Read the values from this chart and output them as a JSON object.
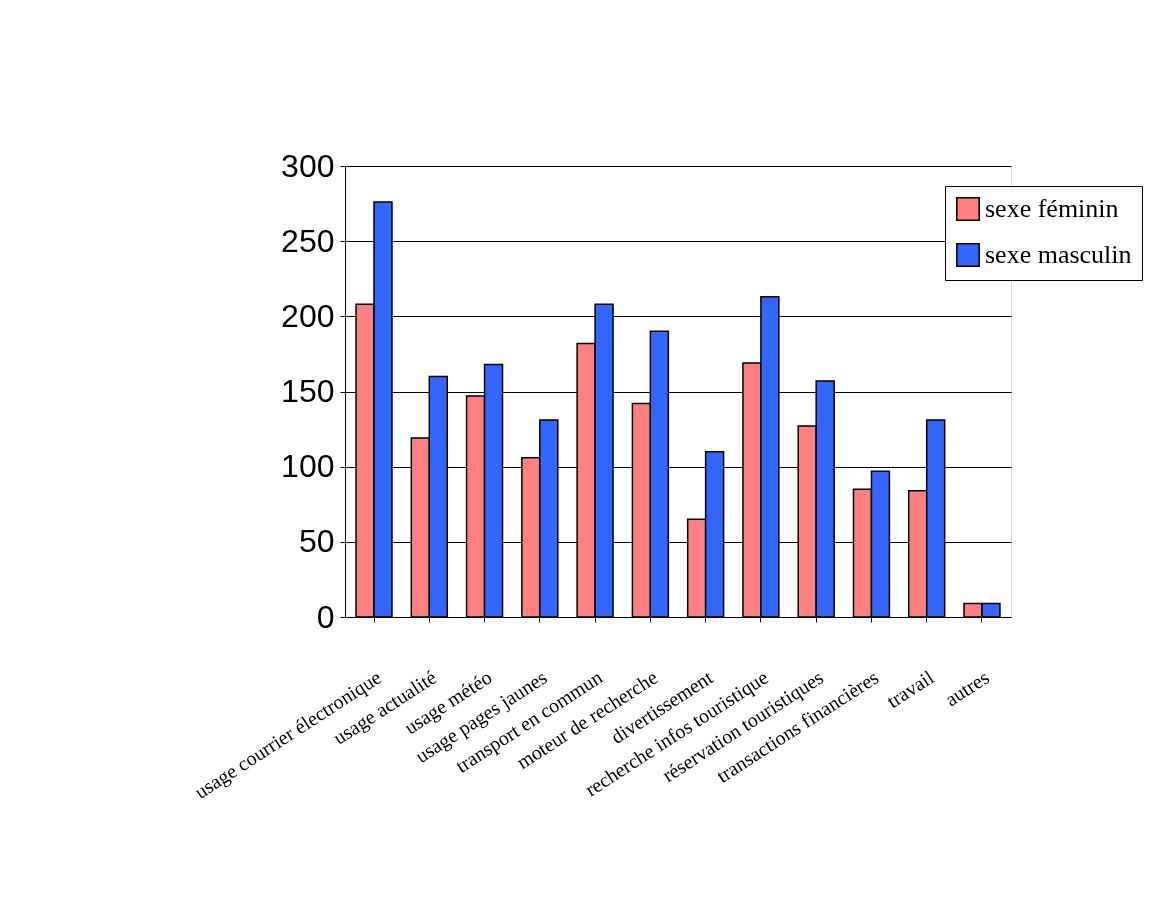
{
  "chart_data": {
    "type": "bar",
    "categories": [
      "usage courrier électronique",
      "usage actualité",
      "usage météo",
      "usage pages jaunes",
      "transport en commun",
      "moteur de recherche",
      "divertissement",
      "recherche infos touristique",
      "réservation touristiques",
      "transactions financières",
      "travail",
      "autres"
    ],
    "series": [
      {
        "name": "sexe féminin",
        "color": "#ff8080",
        "values": [
          208,
          119,
          147,
          106,
          182,
          142,
          65,
          169,
          127,
          85,
          84,
          9
        ]
      },
      {
        "name": "sexe masculin",
        "color": "#3366ff",
        "values": [
          276,
          160,
          168,
          131,
          208,
          190,
          110,
          213,
          157,
          97,
          131,
          9
        ]
      }
    ],
    "ylim": [
      0,
      300
    ],
    "yticks": [
      0,
      50,
      100,
      150,
      200,
      250,
      300
    ],
    "grid": "y",
    "legend": "top right"
  }
}
